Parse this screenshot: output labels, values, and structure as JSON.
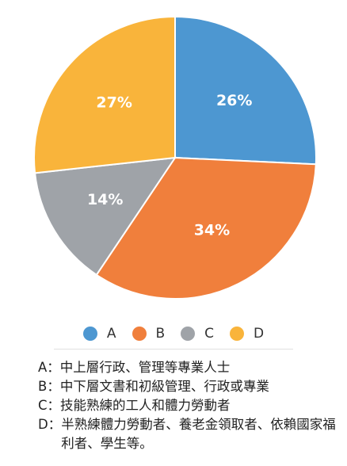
{
  "chart_data": {
    "type": "pie",
    "categories": [
      "A",
      "B",
      "C",
      "D"
    ],
    "values": [
      26,
      34,
      14,
      27
    ],
    "labels": [
      "26%",
      "34%",
      "14%",
      "27%"
    ],
    "colors": [
      "#4d97d1",
      "#f07f3c",
      "#9fa3a8",
      "#f9b43b"
    ],
    "legend_placement": "bottom"
  },
  "legend": [
    {
      "label": "A",
      "color": "#4d97d1"
    },
    {
      "label": "B",
      "color": "#f07f3c"
    },
    {
      "label": "C",
      "color": "#9fa3a8"
    },
    {
      "label": "D",
      "color": "#f9b43b"
    }
  ],
  "notes": [
    {
      "letter": "A：",
      "text": "中上層行政、管理等專業人士"
    },
    {
      "letter": "B：",
      "text": "中下層文書和初級管理、行政或專業"
    },
    {
      "letter": "C：",
      "text": "技能熟練的工人和體力勞動者"
    },
    {
      "letter": "D：",
      "text": "半熟練體力勞動者、養老金領取者、依賴國家福利者、學生等。"
    }
  ]
}
